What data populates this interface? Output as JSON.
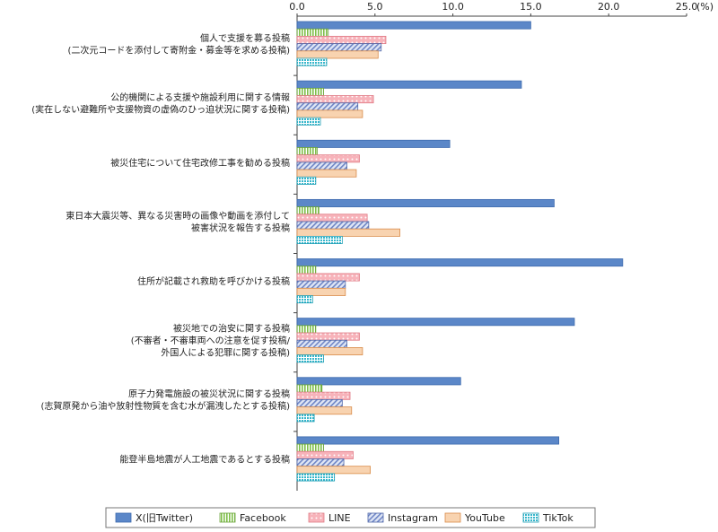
{
  "chart_data": {
    "type": "bar",
    "orientation": "horizontal",
    "unit": "(%)",
    "xlim": [
      0,
      25
    ],
    "xticks": [
      "0.0",
      "5.0",
      "10.0",
      "15.0",
      "20.0",
      "25.0"
    ],
    "grid": false,
    "legend_position": "bottom",
    "categories": [
      [
        "個人で支援を募る投稿",
        "(二次元コードを添付して寄附金・募金等を求める投稿)"
      ],
      [
        "公的機関による支援や施設利用に関する情報",
        "(実在しない避難所や支援物資の虚偽のひっ迫状況に関する投稿)"
      ],
      [
        "被災住宅について住宅改修工事を勧める投稿"
      ],
      [
        "東日本大震災等、異なる災害時の画像や動画を添付して",
        "被害状況を報告する投稿"
      ],
      [
        "住所が記載され救助を呼びかける投稿"
      ],
      [
        "被災地での治安に関する投稿",
        "(不審者・不審車両への注意を促す投稿/",
        "外国人による犯罪に関する投稿)"
      ],
      [
        "原子力発電施設の被災状況に関する投稿",
        "(志賀原発から油や放射性物質を含む水が漏洩したとする投稿)"
      ],
      [
        "能登半島地震が人工地震であるとする投稿"
      ]
    ],
    "series": [
      {
        "name": "X(旧Twitter)",
        "values": [
          15.0,
          14.4,
          9.8,
          16.5,
          20.9,
          17.8,
          10.5,
          16.8
        ],
        "color": "#5b87c8",
        "pattern": "solid"
      },
      {
        "name": "Facebook",
        "values": [
          2.0,
          1.7,
          1.3,
          1.4,
          1.2,
          1.2,
          1.6,
          1.7
        ],
        "color": "#9fd06a",
        "pattern": "vertical-lines"
      },
      {
        "name": "LINE",
        "values": [
          5.7,
          4.9,
          4.0,
          4.5,
          4.0,
          4.0,
          3.4,
          3.6
        ],
        "color": "#f4a0a8",
        "pattern": "dots"
      },
      {
        "name": "Instagram",
        "values": [
          5.4,
          3.9,
          3.2,
          4.6,
          3.1,
          3.2,
          2.9,
          3.0
        ],
        "color": "#6f86c6",
        "pattern": "diagonal-lines"
      },
      {
        "name": "YouTube",
        "values": [
          5.2,
          4.2,
          3.8,
          6.6,
          3.1,
          4.2,
          3.5,
          4.7
        ],
        "color": "#f5c9a0",
        "pattern": "light-solid"
      },
      {
        "name": "TikTok",
        "values": [
          1.9,
          1.5,
          1.2,
          2.9,
          1.0,
          1.7,
          1.1,
          2.4
        ],
        "color": "#4fc3d6",
        "pattern": "grid-dots"
      }
    ]
  }
}
